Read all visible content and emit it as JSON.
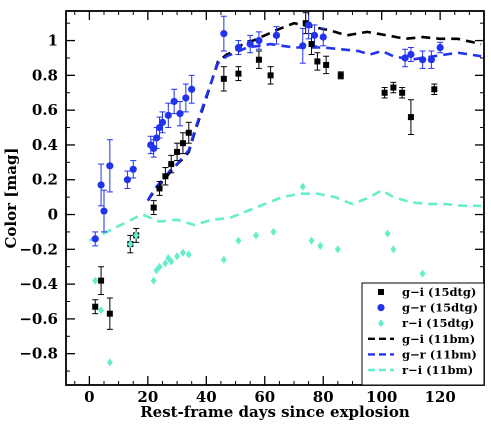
{
  "chart_data": {
    "type": "scatter",
    "title": "",
    "xlabel": "Rest-frame days since explosion",
    "ylabel": "Color [mag]",
    "xlim": [
      -8,
      135
    ],
    "ylim": [
      -0.98,
      1.17
    ],
    "xticks": [
      0,
      20,
      40,
      60,
      80,
      100,
      120
    ],
    "yticks": [
      -0.8,
      -0.6,
      -0.4,
      -0.2,
      0,
      0.2,
      0.4,
      0.6,
      0.8,
      1
    ],
    "xtick_labels": [
      "0",
      "20",
      "40",
      "60",
      "80",
      "100",
      "120"
    ],
    "ytick_labels": [
      "−0.8",
      "−0.6",
      "−0.4",
      "−0.2",
      "0",
      "0.2",
      "0.4",
      "0.6",
      "0.8",
      "1"
    ],
    "legend_position": "bottom-right",
    "grid": false,
    "series": [
      {
        "name": "g−i (15dtg)",
        "kind": "points",
        "marker": "square",
        "color": "#000000",
        "x": [
          2,
          4,
          7,
          14,
          16,
          22,
          24,
          26,
          28,
          30,
          32,
          34,
          46,
          51,
          58,
          62,
          74,
          76,
          78,
          81,
          86,
          101,
          104,
          107,
          110,
          118
        ],
        "y": [
          -0.53,
          -0.38,
          -0.57,
          -0.17,
          -0.12,
          0.04,
          0.15,
          0.22,
          0.29,
          0.36,
          0.41,
          0.47,
          0.78,
          0.81,
          0.89,
          0.8,
          1.1,
          0.98,
          0.88,
          0.86,
          0.8,
          0.7,
          0.73,
          0.7,
          0.56,
          0.72
        ],
        "err": [
          0.04,
          0.08,
          0.09,
          0.05,
          0.04,
          0.04,
          0.04,
          0.05,
          0.05,
          0.05,
          0.06,
          0.06,
          0.07,
          0.04,
          0.05,
          0.05,
          0.06,
          0.06,
          0.05,
          0.05,
          0.02,
          0.03,
          0.03,
          0.03,
          0.1,
          0.03
        ]
      },
      {
        "name": "g−r (15dtg)",
        "kind": "points",
        "marker": "circle",
        "color": "#2233ee",
        "x": [
          2,
          4,
          5,
          7,
          13,
          15,
          21,
          22,
          23,
          24,
          25,
          27,
          29,
          31,
          33,
          35,
          46,
          51,
          55,
          58,
          64,
          73,
          75,
          77,
          80,
          108,
          110,
          114,
          117,
          120
        ],
        "y": [
          -0.14,
          0.17,
          0.02,
          0.28,
          0.2,
          0.26,
          0.4,
          0.38,
          0.44,
          0.5,
          0.53,
          0.57,
          0.65,
          0.58,
          0.67,
          0.72,
          1.04,
          0.96,
          0.98,
          1.0,
          1.03,
          0.97,
          1.09,
          1.03,
          1.02,
          0.9,
          0.92,
          0.89,
          0.89,
          0.96
        ],
        "err": [
          0.04,
          0.12,
          0.12,
          0.15,
          0.05,
          0.05,
          0.05,
          0.05,
          0.06,
          0.06,
          0.06,
          0.07,
          0.07,
          0.07,
          0.08,
          0.08,
          0.1,
          0.04,
          0.05,
          0.05,
          0.05,
          0.1,
          0.08,
          0.06,
          0.05,
          0.05,
          0.04,
          0.05,
          0.05,
          0.03
        ]
      },
      {
        "name": "r−i (15dtg)",
        "kind": "points",
        "marker": "diamond",
        "color": "#66eecc",
        "x": [
          2,
          4,
          7,
          14,
          16,
          22,
          23,
          24,
          26,
          27,
          28,
          30,
          32,
          34,
          46,
          51,
          57,
          63,
          73,
          76,
          79,
          85,
          102,
          104,
          114
        ],
        "y": [
          -0.38,
          -0.55,
          -0.85,
          -0.17,
          -0.12,
          -0.38,
          -0.32,
          -0.3,
          -0.28,
          -0.25,
          -0.27,
          -0.24,
          -0.22,
          -0.23,
          -0.26,
          -0.15,
          -0.12,
          -0.1,
          0.16,
          -0.15,
          -0.18,
          -0.2,
          -0.11,
          -0.2,
          -0.34
        ]
      },
      {
        "name": "g−i (11bm)",
        "kind": "line",
        "dash": "9,6",
        "color": "#000000",
        "x": [
          20,
          22,
          24,
          26,
          28,
          30,
          32,
          34,
          36,
          40,
          44,
          47,
          50,
          53,
          56,
          60,
          64,
          70,
          76,
          82,
          88,
          95,
          102,
          108,
          114,
          120,
          126,
          134
        ],
        "y": [
          0.08,
          0.13,
          0.17,
          0.21,
          0.25,
          0.29,
          0.32,
          0.36,
          0.47,
          0.67,
          0.88,
          0.92,
          0.94,
          0.99,
          1.0,
          1.03,
          1.06,
          1.1,
          1.08,
          1.06,
          1.03,
          1.05,
          1.03,
          1.01,
          1.02,
          1.01,
          1.01,
          0.98
        ]
      },
      {
        "name": "g−r (11bm)",
        "kind": "line",
        "dash": "9,6",
        "color": "#2233ee",
        "x": [
          20,
          22,
          24,
          26,
          28,
          30,
          32,
          34,
          36,
          40,
          44,
          47,
          50,
          54,
          58,
          62,
          66,
          70,
          75,
          80,
          86,
          92,
          96,
          100,
          104,
          110,
          118,
          126,
          134
        ],
        "y": [
          0.08,
          0.14,
          0.18,
          0.22,
          0.26,
          0.29,
          0.33,
          0.37,
          0.48,
          0.68,
          0.87,
          0.91,
          0.93,
          0.96,
          0.97,
          0.98,
          0.97,
          0.96,
          0.96,
          0.96,
          0.95,
          0.94,
          0.92,
          0.94,
          0.91,
          0.89,
          0.91,
          0.93,
          0.91
        ]
      },
      {
        "name": "r−i (11bm)",
        "kind": "line",
        "dash": "9,6",
        "color": "#66eecc",
        "x": [
          0,
          6,
          12,
          18,
          24,
          30,
          36,
          42,
          48,
          54,
          60,
          66,
          72,
          78,
          84,
          90,
          96,
          100,
          104,
          110,
          116,
          122,
          128,
          134
        ],
        "y": [
          -0.15,
          -0.1,
          -0.05,
          0.0,
          -0.04,
          -0.03,
          -0.06,
          -0.03,
          -0.02,
          0.02,
          0.06,
          0.1,
          0.12,
          0.12,
          0.1,
          0.06,
          0.1,
          0.14,
          0.1,
          0.07,
          0.06,
          0.06,
          0.05,
          0.05
        ]
      }
    ]
  }
}
